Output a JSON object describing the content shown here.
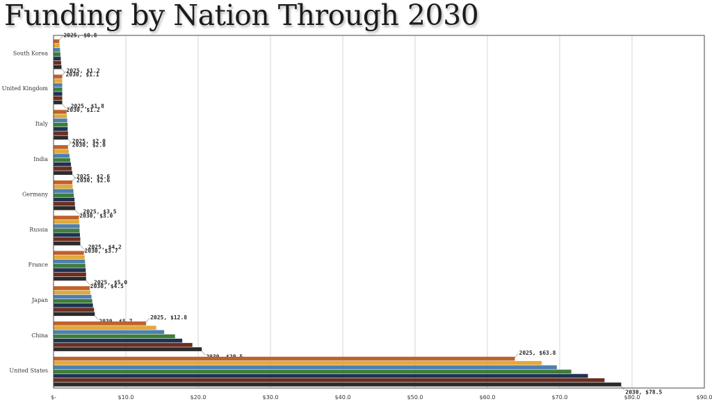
{
  "chart_data": {
    "type": "bar",
    "orientation": "horizontal",
    "title": "Funding by Nation Through 2030",
    "xlim": [
      0,
      90
    ],
    "x_ticks": [
      "$-",
      "$10.0",
      "$20.0",
      "$30.0",
      "$40.0",
      "$50.0",
      "$60.0",
      "$70.0",
      "$80.0",
      "$90.0"
    ],
    "grid": true,
    "legend": "none",
    "categories": [
      "South Korea",
      "United Kingdom",
      "Italy",
      "India",
      "Germany",
      "Russia",
      "France",
      "Japan",
      "China",
      "United States"
    ],
    "series": [
      {
        "color": "#c0622b",
        "values": [
          0.8,
          1.2,
          1.8,
          2.0,
          2.6,
          3.5,
          4.2,
          5.0,
          12.8,
          63.8
        ]
      },
      {
        "color": "#e2a93a",
        "values": [
          0.85,
          1.2,
          1.85,
          2.1,
          2.65,
          3.55,
          4.3,
          5.1,
          14.2,
          67.5
        ]
      },
      {
        "color": "#4f7fb0",
        "values": [
          0.9,
          1.2,
          1.9,
          2.2,
          2.75,
          3.6,
          4.35,
          5.25,
          15.3,
          69.6
        ]
      },
      {
        "color": "#3e7d3c",
        "values": [
          0.95,
          1.2,
          1.95,
          2.3,
          2.8,
          3.6,
          4.4,
          5.35,
          16.8,
          71.6
        ]
      },
      {
        "color": "#1f3350",
        "values": [
          1.0,
          1.2,
          1.95,
          2.4,
          2.9,
          3.65,
          4.45,
          5.45,
          17.8,
          73.9
        ]
      },
      {
        "color": "#6b2e20",
        "values": [
          1.05,
          1.2,
          2.0,
          2.5,
          2.95,
          3.7,
          4.5,
          5.6,
          19.2,
          76.2
        ]
      },
      {
        "color": "#2b2b2b",
        "values": [
          1.1,
          1.2,
          2.0,
          2.6,
          3.0,
          3.7,
          4.5,
          5.7,
          20.5,
          78.5
        ]
      }
    ],
    "data_labels": [
      {
        "category": "South Korea",
        "first": "2025, $0.8",
        "last": "2030, $1.1"
      },
      {
        "category": "United Kingdom",
        "first": "2025, $1.2",
        "last": "2030, $1.2"
      },
      {
        "category": "Italy",
        "first": "2025, $1.8",
        "last": "2030, $2.0"
      },
      {
        "category": "India",
        "first": "2025, $2.0",
        "last": "2030, $2.6"
      },
      {
        "category": "Germany",
        "first": "2025, $2.6",
        "last": "2030, $3.0"
      },
      {
        "category": "Russia",
        "first": "2025, $3.5",
        "last": "2030, $3.7"
      },
      {
        "category": "France",
        "first": "2025, $4.2",
        "last": "2030, $4.5"
      },
      {
        "category": "Japan",
        "first": "2025, $5.0",
        "last": "2030, $5.7"
      },
      {
        "category": "China",
        "first": "2025, $12.8",
        "last": "2030, $20.5"
      },
      {
        "category": "United States",
        "first": "2025, $63.8",
        "last": "2030, $78.5"
      }
    ]
  }
}
